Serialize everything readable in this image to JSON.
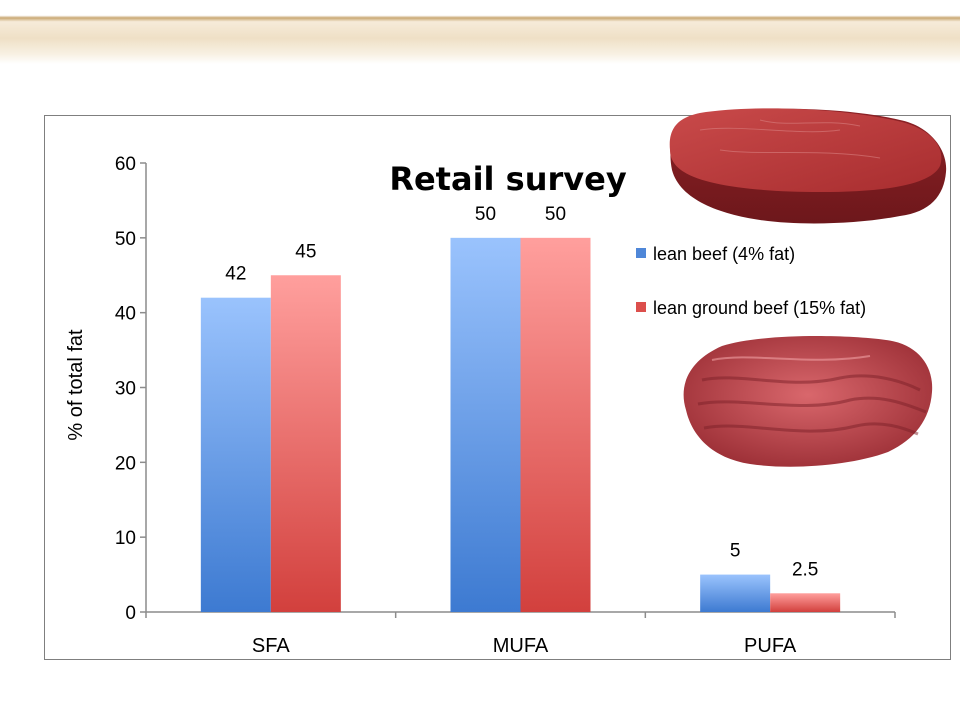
{
  "chart_data": {
    "type": "bar",
    "title": "Retail survey",
    "xlabel": "",
    "ylabel": "% of total fat",
    "categories": [
      "SFA",
      "MUFA",
      "PUFA"
    ],
    "series": [
      {
        "name": "lean beef (4% fat)",
        "values": [
          42,
          50,
          5
        ],
        "color": "#4f87d8"
      },
      {
        "name": "lean ground beef (15% fat)",
        "values": [
          45,
          50,
          2.5
        ],
        "color": "#dc4f4c"
      }
    ],
    "data_labels": [
      [
        "42",
        "50",
        "5"
      ],
      [
        "45",
        "50",
        "2.5"
      ]
    ],
    "ylim": [
      0,
      60
    ],
    "y_ticks": [
      "0",
      "10",
      "20",
      "30",
      "40",
      "50",
      "60"
    ],
    "grid": false,
    "legend_position": "right"
  },
  "images": {
    "steak": "steak-photo",
    "ground_beef": "ground-beef-photo"
  }
}
